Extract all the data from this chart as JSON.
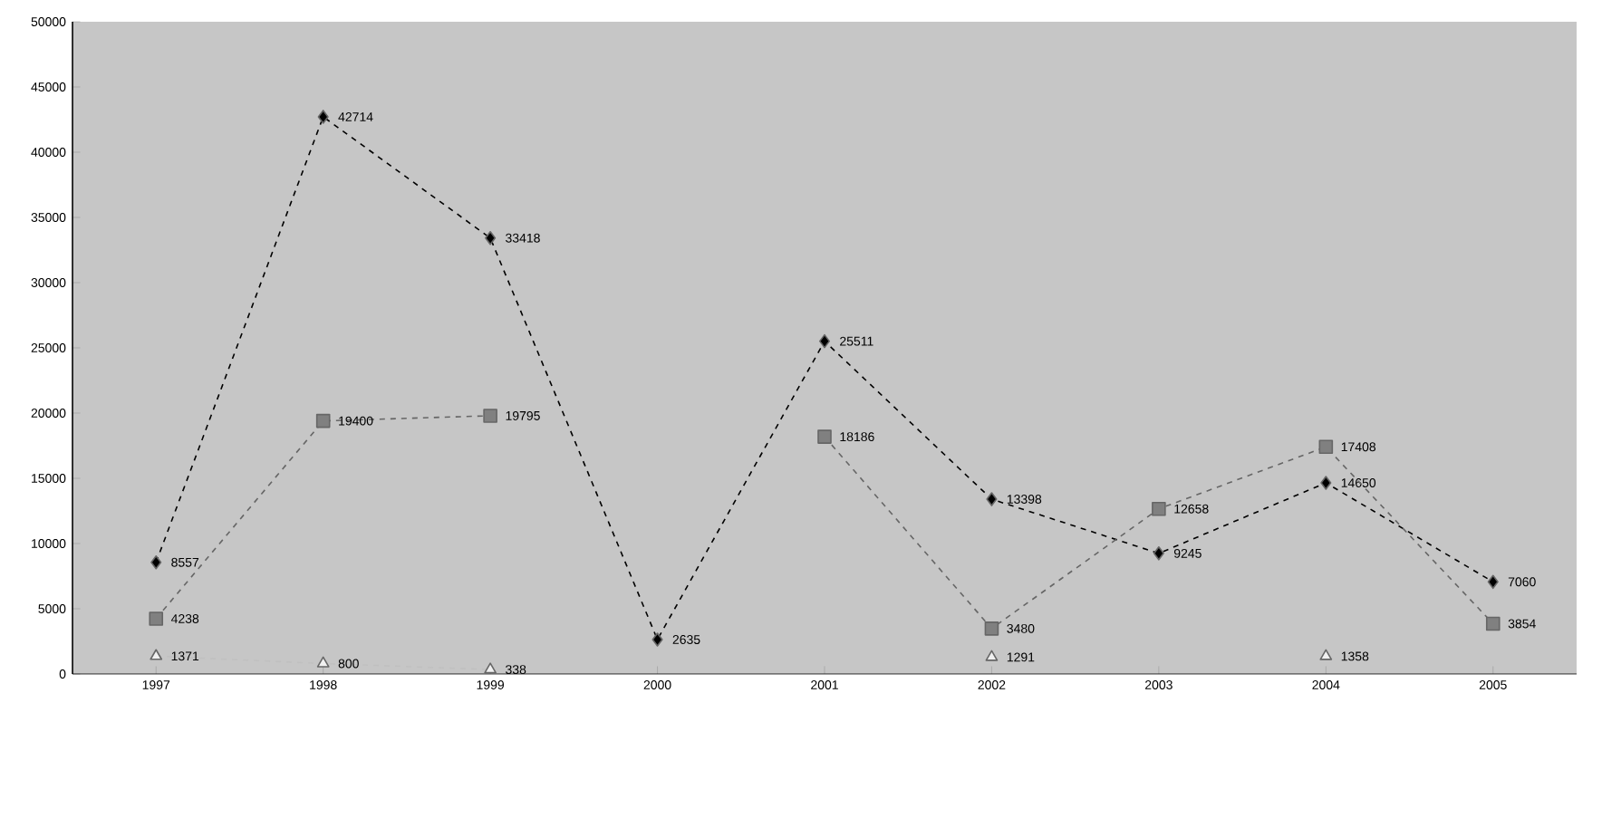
{
  "chart_data": {
    "type": "line",
    "categories": [
      "1997",
      "1998",
      "1999",
      "2000",
      "2001",
      "2002",
      "2003",
      "2004",
      "2005"
    ],
    "series": [
      {
        "color": "#000000",
        "marker": "diamond",
        "line_style": "dashed",
        "values": [
          8557,
          42714,
          33418,
          2635,
          25511,
          13398,
          9245,
          14650,
          7060
        ]
      },
      {
        "color": "#808080",
        "marker": "square",
        "line_style": "dashed",
        "values": [
          4238,
          19400,
          19795,
          null,
          18186,
          3480,
          12658,
          17408,
          3854
        ]
      },
      {
        "color": "#f0f0f0",
        "marker": "triangle",
        "line_style": "dashed",
        "values": [
          1371,
          800,
          338,
          null,
          null,
          1291,
          null,
          1358,
          null
        ]
      }
    ],
    "ylim": [
      0,
      50000
    ],
    "yticks": [
      0,
      5000,
      10000,
      15000,
      20000,
      25000,
      30000,
      35000,
      40000,
      45000,
      50000
    ],
    "data_labels": true
  }
}
